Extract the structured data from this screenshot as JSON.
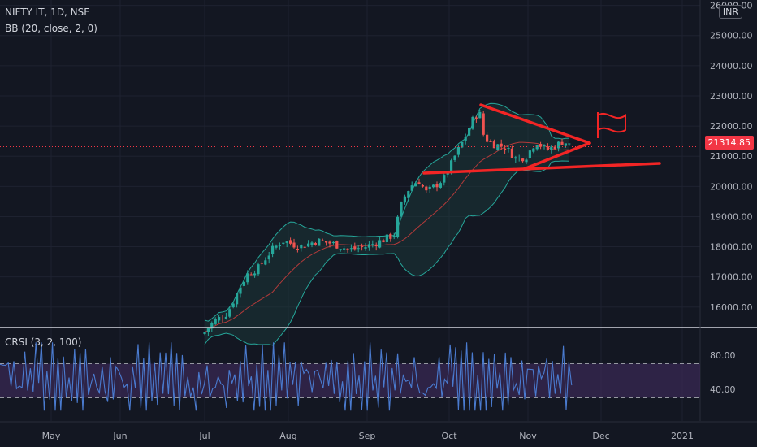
{
  "header": {
    "symbol": "NIFTY IT, 1D, NSE",
    "indicator": "BB (20, close, 2, 0)",
    "currency": "INR",
    "last_price": "21314.85"
  },
  "oscillator": {
    "label": "CRSI (3, 2, 100)",
    "ticks": [
      "80.00",
      "40.00"
    ],
    "upper_band": 70,
    "lower_band": 30
  },
  "chart_data": {
    "type": "candlestick",
    "y_ticks": [
      "16000.00",
      "17000.00",
      "18000.00",
      "19000.00",
      "20000.00",
      "21000.00",
      "22000.00",
      "23000.00",
      "24000.00",
      "25000.00",
      "26000.00"
    ],
    "x_labels": [
      "May",
      "Jun",
      "Jul",
      "Aug",
      "Sep",
      "Oct",
      "Nov",
      "Dec",
      "2021"
    ],
    "ylim": [
      15000,
      26200
    ],
    "last_price": 21314.85,
    "colors": {
      "up": "#26a69a",
      "down": "#ef5350",
      "bb_band": "#26a69a",
      "bb_fill": "#1b3a3a",
      "basis": "#b23a3a",
      "annotation": "#f22525",
      "crsi": "#4a7bd0",
      "crsi_band": "#3a2a55"
    }
  }
}
